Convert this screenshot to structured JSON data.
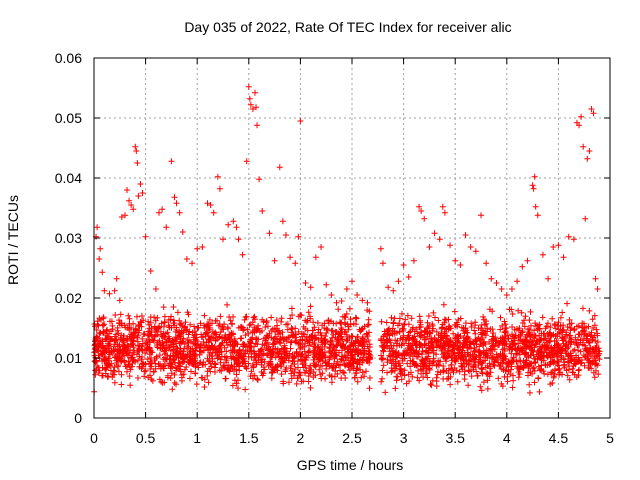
{
  "chart_data": {
    "type": "scatter",
    "title": "Day 035 of 2022, Rate Of TEC Index for receiver alic",
    "xlabel": "GPS time / hours",
    "ylabel": "ROTI / TECUs",
    "xlim": [
      0,
      5
    ],
    "ylim": [
      0,
      0.06
    ],
    "xticks": [
      0,
      0.5,
      1,
      1.5,
      2,
      2.5,
      3,
      3.5,
      4,
      4.5,
      5
    ],
    "yticks": [
      0,
      0.01,
      0.02,
      0.03,
      0.04,
      0.05,
      0.06
    ],
    "xtick_labels": [
      "0",
      "0.5",
      "1",
      "1.5",
      "2",
      "2.5",
      "3",
      "3.5",
      "4",
      "4.5",
      "5"
    ],
    "ytick_labels": [
      "0",
      "0.01",
      "0.02",
      "0.03",
      "0.04",
      "0.05",
      "0.06"
    ],
    "grid": true,
    "marker": "+",
    "color": "#ff0000",
    "series": [
      {
        "name": "ROTI",
        "points": [
          [
            0.02,
            0.0302
          ],
          [
            0.03,
            0.0318
          ],
          [
            0.05,
            0.0265
          ],
          [
            0.06,
            0.0282
          ],
          [
            0.08,
            0.0243
          ],
          [
            0.1,
            0.0212
          ],
          [
            0.15,
            0.0207
          ],
          [
            0.2,
            0.0212
          ],
          [
            0.22,
            0.0232
          ],
          [
            0.25,
            0.0196
          ],
          [
            0.27,
            0.0335
          ],
          [
            0.3,
            0.0338
          ],
          [
            0.32,
            0.038
          ],
          [
            0.34,
            0.0362
          ],
          [
            0.36,
            0.0355
          ],
          [
            0.38,
            0.0348
          ],
          [
            0.4,
            0.0452
          ],
          [
            0.41,
            0.0445
          ],
          [
            0.42,
            0.0425
          ],
          [
            0.43,
            0.037
          ],
          [
            0.45,
            0.039
          ],
          [
            0.47,
            0.0375
          ],
          [
            0.5,
            0.0302
          ],
          [
            0.55,
            0.0245
          ],
          [
            0.6,
            0.0215
          ],
          [
            0.63,
            0.0342
          ],
          [
            0.66,
            0.0348
          ],
          [
            0.7,
            0.0318
          ],
          [
            0.75,
            0.0428
          ],
          [
            0.78,
            0.0368
          ],
          [
            0.8,
            0.0358
          ],
          [
            0.83,
            0.0342
          ],
          [
            0.86,
            0.031
          ],
          [
            0.9,
            0.0265
          ],
          [
            0.95,
            0.0258
          ],
          [
            1.0,
            0.0282
          ],
          [
            1.05,
            0.0285
          ],
          [
            1.1,
            0.0358
          ],
          [
            1.13,
            0.0355
          ],
          [
            1.16,
            0.0342
          ],
          [
            1.2,
            0.0402
          ],
          [
            1.22,
            0.0382
          ],
          [
            1.25,
            0.0298
          ],
          [
            1.3,
            0.0322
          ],
          [
            1.35,
            0.0328
          ],
          [
            1.38,
            0.0318
          ],
          [
            1.4,
            0.0298
          ],
          [
            1.44,
            0.0272
          ],
          [
            1.48,
            0.0428
          ],
          [
            1.5,
            0.0552
          ],
          [
            1.51,
            0.0532
          ],
          [
            1.52,
            0.0522
          ],
          [
            1.54,
            0.0515
          ],
          [
            1.56,
            0.0542
          ],
          [
            1.57,
            0.0518
          ],
          [
            1.58,
            0.0488
          ],
          [
            1.6,
            0.0398
          ],
          [
            1.63,
            0.0345
          ],
          [
            1.7,
            0.0308
          ],
          [
            1.75,
            0.0262
          ],
          [
            1.8,
            0.0418
          ],
          [
            1.83,
            0.0328
          ],
          [
            1.86,
            0.0305
          ],
          [
            1.9,
            0.0268
          ],
          [
            1.95,
            0.0258
          ],
          [
            1.98,
            0.0302
          ],
          [
            2.0,
            0.0495
          ],
          [
            2.05,
            0.0225
          ],
          [
            2.1,
            0.0218
          ],
          [
            2.15,
            0.0268
          ],
          [
            2.2,
            0.0285
          ],
          [
            2.25,
            0.0222
          ],
          [
            2.3,
            0.0205
          ],
          [
            2.35,
            0.0192
          ],
          [
            2.4,
            0.0195
          ],
          [
            2.45,
            0.0215
          ],
          [
            2.5,
            0.0228
          ],
          [
            2.55,
            0.0205
          ],
          [
            2.6,
            0.0196
          ],
          [
            2.65,
            0.0192
          ],
          [
            2.78,
            0.0282
          ],
          [
            2.8,
            0.0258
          ],
          [
            2.85,
            0.0218
          ],
          [
            2.9,
            0.0212
          ],
          [
            2.95,
            0.0228
          ],
          [
            3.0,
            0.0255
          ],
          [
            3.05,
            0.0235
          ],
          [
            3.1,
            0.0262
          ],
          [
            3.15,
            0.0352
          ],
          [
            3.17,
            0.0345
          ],
          [
            3.2,
            0.0332
          ],
          [
            3.25,
            0.0285
          ],
          [
            3.3,
            0.0308
          ],
          [
            3.35,
            0.0298
          ],
          [
            3.38,
            0.0352
          ],
          [
            3.4,
            0.0342
          ],
          [
            3.45,
            0.0288
          ],
          [
            3.5,
            0.0262
          ],
          [
            3.55,
            0.0255
          ],
          [
            3.6,
            0.0305
          ],
          [
            3.65,
            0.0285
          ],
          [
            3.7,
            0.0278
          ],
          [
            3.75,
            0.0338
          ],
          [
            3.8,
            0.0258
          ],
          [
            3.85,
            0.0232
          ],
          [
            3.9,
            0.0225
          ],
          [
            3.95,
            0.0215
          ],
          [
            4.0,
            0.0205
          ],
          [
            4.05,
            0.0215
          ],
          [
            4.1,
            0.0228
          ],
          [
            4.15,
            0.0252
          ],
          [
            4.2,
            0.0262
          ],
          [
            4.25,
            0.0388
          ],
          [
            4.26,
            0.0382
          ],
          [
            4.27,
            0.0402
          ],
          [
            4.28,
            0.0352
          ],
          [
            4.3,
            0.0338
          ],
          [
            4.35,
            0.0272
          ],
          [
            4.4,
            0.0232
          ],
          [
            4.45,
            0.0285
          ],
          [
            4.5,
            0.0288
          ],
          [
            4.55,
            0.0268
          ],
          [
            4.6,
            0.0302
          ],
          [
            4.65,
            0.0298
          ],
          [
            4.68,
            0.0492
          ],
          [
            4.7,
            0.0488
          ],
          [
            4.72,
            0.0502
          ],
          [
            4.74,
            0.0452
          ],
          [
            4.76,
            0.0332
          ],
          [
            4.78,
            0.0432
          ],
          [
            4.8,
            0.0445
          ],
          [
            4.82,
            0.0515
          ],
          [
            4.84,
            0.0508
          ],
          [
            4.86,
            0.0232
          ],
          [
            4.88,
            0.0215
          ]
        ]
      }
    ],
    "dense_band": {
      "description": "dense scatter band",
      "segments": [
        {
          "x": [
            0.0,
            2.68
          ],
          "y_range": [
            0.0035,
            0.0195
          ],
          "count": 1700
        },
        {
          "x": [
            2.78,
            4.9
          ],
          "y_range": [
            0.0035,
            0.0195
          ],
          "count": 1350
        }
      ]
    }
  }
}
